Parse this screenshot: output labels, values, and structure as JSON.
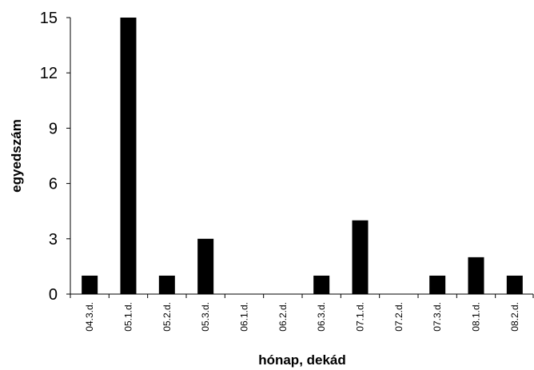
{
  "chart_data": {
    "type": "bar",
    "categories": [
      "04.3.d.",
      "05.1.d.",
      "05.2.d.",
      "05.3.d.",
      "06.1.d.",
      "06.2.d.",
      "06.3.d.",
      "07.1.d.",
      "07.2.d.",
      "07.3.d.",
      "08.1.d.",
      "08.2.d."
    ],
    "values": [
      1,
      15,
      1,
      3,
      0,
      0,
      1,
      4,
      0,
      1,
      2,
      1
    ],
    "xlabel": "hónap, dekád",
    "ylabel": "egyedszám",
    "ylim": [
      0,
      15
    ],
    "yticks": [
      "0",
      "3",
      "6",
      "9",
      "12",
      "15"
    ],
    "grid": false,
    "bar_color": "#000000"
  }
}
